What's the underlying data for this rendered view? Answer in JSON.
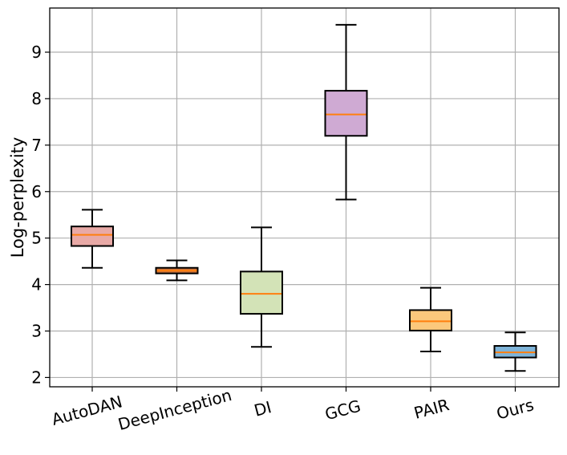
{
  "chart_data": {
    "type": "box",
    "title": "",
    "xlabel": "",
    "ylabel": "Log-perplexity",
    "ylim": [
      1.8,
      9.95
    ],
    "yticks": [
      2,
      3,
      4,
      5,
      6,
      7,
      8,
      9
    ],
    "grid": true,
    "x_tick_rotation_deg": 15,
    "median_color": "#ff7f0e",
    "categories": [
      "AutoDAN",
      "DeepInception",
      "DI",
      "GCG",
      "PAIR",
      "Ours"
    ],
    "boxes": [
      {
        "label": "AutoDAN",
        "whisker_low": 4.36,
        "q1": 4.83,
        "median": 5.07,
        "q3": 5.25,
        "whisker_high": 5.61,
        "color": "#e8a9a6"
      },
      {
        "label": "DeepInception",
        "whisker_low": 4.09,
        "q1": 4.24,
        "median": 4.3,
        "q3": 4.36,
        "whisker_high": 4.52,
        "color": "#c8733f"
      },
      {
        "label": "DI",
        "whisker_low": 2.66,
        "q1": 3.37,
        "median": 3.8,
        "q3": 4.28,
        "whisker_high": 5.23,
        "color": "#d3e3b7"
      },
      {
        "label": "GCG",
        "whisker_low": 5.83,
        "q1": 7.2,
        "median": 7.66,
        "q3": 8.17,
        "whisker_high": 9.59,
        "color": "#cfaad3"
      },
      {
        "label": "PAIR",
        "whisker_low": 2.56,
        "q1": 3.01,
        "median": 3.21,
        "q3": 3.45,
        "whisker_high": 3.93,
        "color": "#fbc87c"
      },
      {
        "label": "Ours",
        "whisker_low": 2.14,
        "q1": 2.43,
        "median": 2.54,
        "q3": 2.68,
        "whisker_high": 2.97,
        "color": "#7fb4d9"
      }
    ]
  }
}
